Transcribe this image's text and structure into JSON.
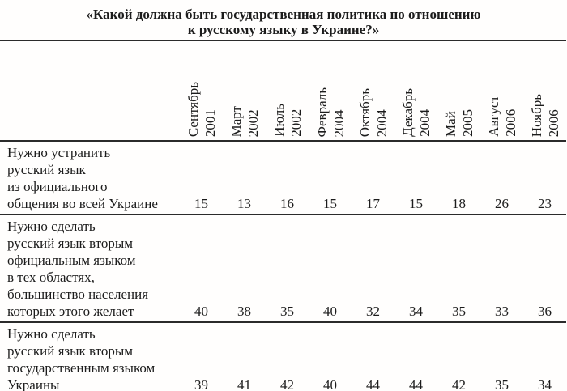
{
  "page": {
    "title_line1": "«Какой должна быть государственная политика по отношению",
    "title_line2": "к русскому языку в Украине?»"
  },
  "table": {
    "columns": [
      {
        "month": "Сентябрь",
        "year": "2001"
      },
      {
        "month": "Март",
        "year": "2002"
      },
      {
        "month": "Июль",
        "year": "2002"
      },
      {
        "month": "Февраль",
        "year": "2004"
      },
      {
        "month": "Октябрь",
        "year": "2004"
      },
      {
        "month": "Декабрь",
        "year": "2004"
      },
      {
        "month": "Май",
        "year": "2005"
      },
      {
        "month": "Август",
        "year": "2006"
      },
      {
        "month": "Ноябрь",
        "year": "2006"
      }
    ],
    "rows": [
      {
        "label_lines": [
          "Нужно устранить",
          "русский язык",
          "из официального",
          "общения во всей Украине"
        ],
        "values": [
          15,
          13,
          16,
          15,
          17,
          15,
          18,
          26,
          23
        ]
      },
      {
        "label_lines": [
          "Нужно сделать",
          "русский язык вторым",
          "официальным языком",
          "в тех областях,",
          "большинство населения",
          "которых этого желает"
        ],
        "values": [
          40,
          38,
          35,
          40,
          32,
          34,
          35,
          33,
          36
        ]
      },
      {
        "label_lines": [
          "Нужно сделать",
          "русский язык вторым",
          "государственным языком",
          "Украины"
        ],
        "values": [
          39,
          41,
          42,
          40,
          44,
          44,
          42,
          35,
          34
        ]
      }
    ]
  }
}
